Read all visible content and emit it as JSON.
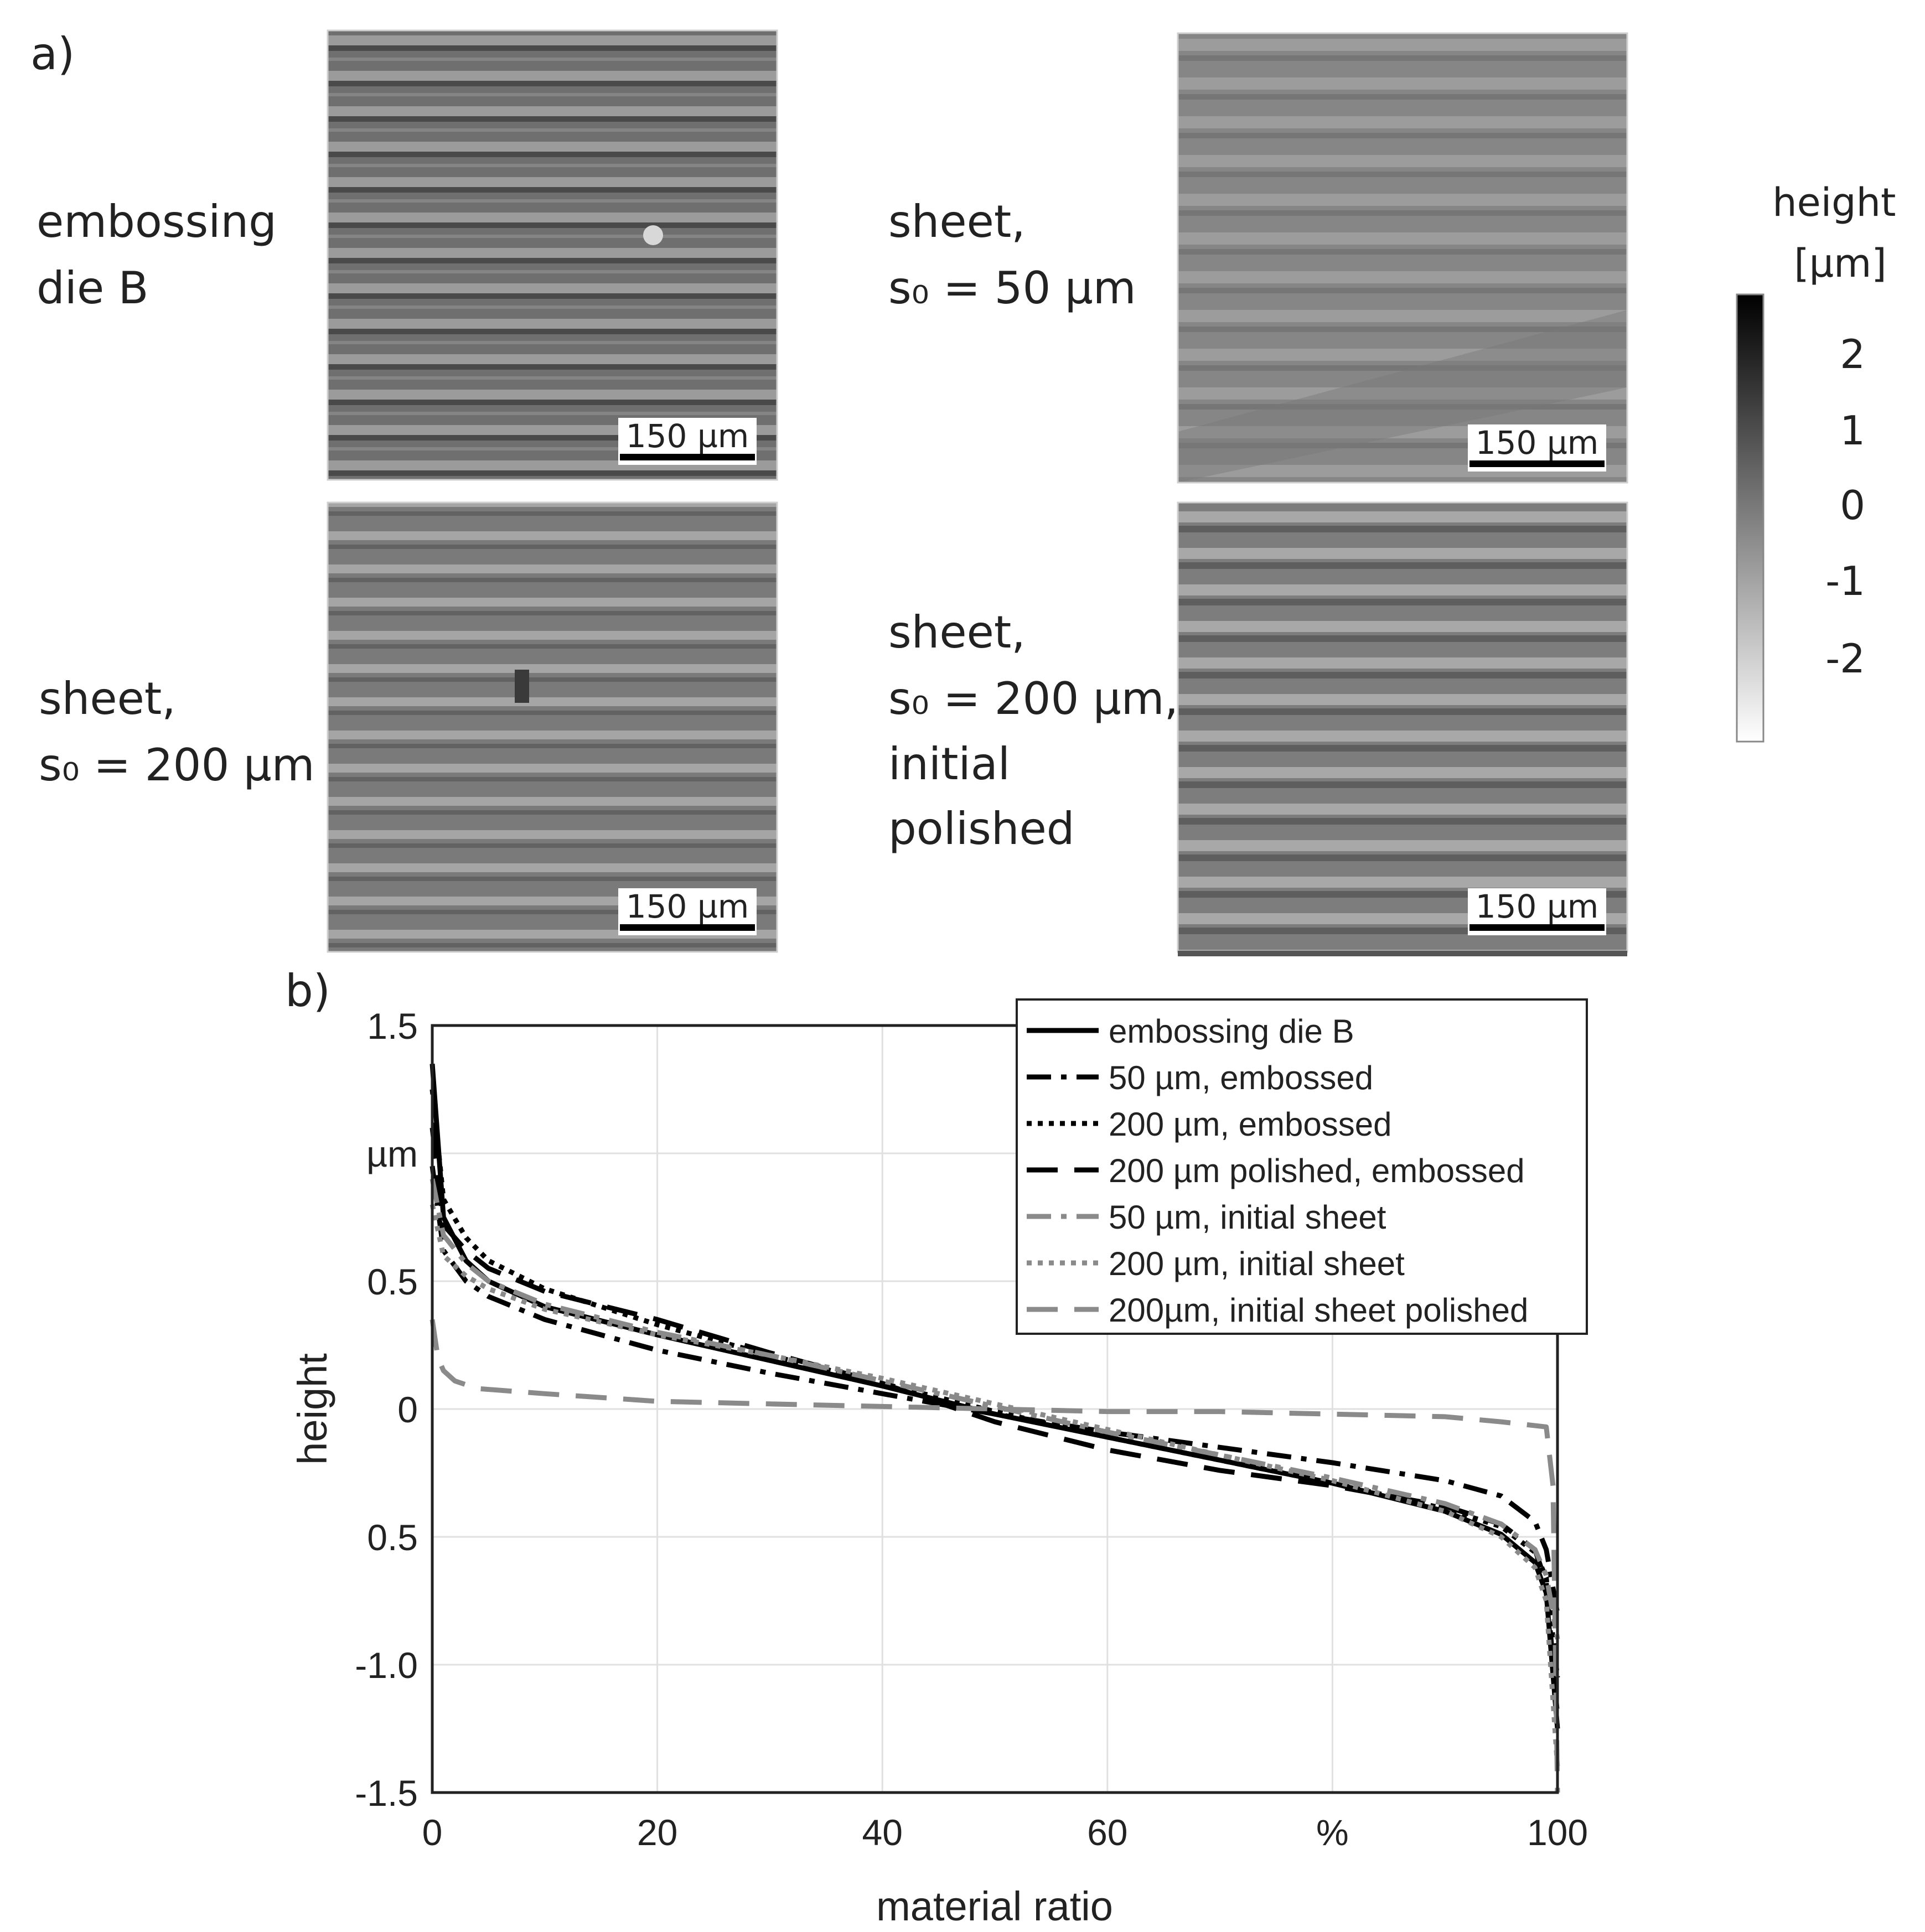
{
  "panel_a": {
    "label": "a)",
    "images": [
      {
        "id": "die",
        "caption": [
          "embossing",
          "die B"
        ],
        "scale_bar": "150 µm"
      },
      {
        "id": "s50",
        "caption": [
          "sheet,",
          "s₀ = 50 µm"
        ],
        "scale_bar": "150 µm"
      },
      {
        "id": "s200",
        "caption": [
          "sheet,",
          "s₀ = 200 µm"
        ],
        "scale_bar": "150 µm"
      },
      {
        "id": "s200p",
        "caption": [
          "sheet,",
          "s₀ = 200 µm,",
          "initial",
          "polished"
        ],
        "scale_bar": "150 µm"
      }
    ],
    "colorbar": {
      "title": [
        "height",
        "[µm]"
      ],
      "ticks": [
        "2",
        "1",
        "0",
        "-1",
        "-2"
      ]
    }
  },
  "panel_b": {
    "label": "b)"
  },
  "chart_data": {
    "type": "line",
    "xlabel": "material ratio",
    "ylabel": "height",
    "x_ticks": [
      "0",
      "20",
      "40",
      "60",
      "%",
      "100"
    ],
    "y_ticks": [
      "1.5",
      "µm",
      "0.5",
      "0",
      "0.5",
      "-1.0",
      "-1.5"
    ],
    "xlim": [
      0,
      100
    ],
    "ylim": [
      -1.5,
      1.5
    ],
    "grid": true,
    "legend_position": "top-right",
    "series": [
      {
        "name": "embossing die B",
        "color": "#000000",
        "dash": "solid",
        "x": [
          0,
          1,
          3,
          5,
          10,
          20,
          30,
          40,
          50,
          60,
          70,
          80,
          90,
          95,
          98,
          99,
          100
        ],
        "y": [
          1.35,
          0.75,
          0.58,
          0.5,
          0.4,
          0.29,
          0.19,
          0.09,
          -0.02,
          -0.11,
          -0.2,
          -0.29,
          -0.4,
          -0.49,
          -0.6,
          -0.72,
          -1.25
        ]
      },
      {
        "name": "50 µm, embossed",
        "color": "#000000",
        "dash": "dashdot",
        "x": [
          0,
          1,
          3,
          5,
          10,
          20,
          30,
          40,
          50,
          60,
          70,
          80,
          90,
          95,
          98,
          99,
          100
        ],
        "y": [
          0.95,
          0.62,
          0.5,
          0.44,
          0.35,
          0.23,
          0.14,
          0.06,
          -0.02,
          -0.09,
          -0.15,
          -0.21,
          -0.28,
          -0.34,
          -0.44,
          -0.55,
          -0.8
        ]
      },
      {
        "name": "200 µm, embossed",
        "color": "#000000",
        "dash": "dotted",
        "x": [
          0,
          1,
          3,
          5,
          10,
          20,
          30,
          40,
          50,
          60,
          70,
          80,
          90,
          95,
          98,
          99,
          100
        ],
        "y": [
          1.25,
          0.82,
          0.67,
          0.58,
          0.47,
          0.33,
          0.21,
          0.1,
          -0.01,
          -0.11,
          -0.2,
          -0.29,
          -0.39,
          -0.46,
          -0.56,
          -0.66,
          -1.05
        ]
      },
      {
        "name": "200 µm polished, embossed",
        "color": "#000000",
        "dash": "longdash",
        "x": [
          0,
          1,
          3,
          5,
          10,
          20,
          30,
          40,
          50,
          60,
          70,
          80,
          90,
          95,
          98,
          99,
          100
        ],
        "y": [
          1.1,
          0.72,
          0.62,
          0.55,
          0.46,
          0.35,
          0.22,
          0.1,
          -0.05,
          -0.16,
          -0.24,
          -0.3,
          -0.38,
          -0.45,
          -0.55,
          -0.68,
          -1.2
        ]
      },
      {
        "name": "50 µm, initial sheet",
        "color": "#8a8a8a",
        "dash": "dashdot",
        "x": [
          0,
          1,
          3,
          5,
          10,
          20,
          30,
          40,
          50,
          60,
          70,
          80,
          90,
          95,
          98,
          99,
          100
        ],
        "y": [
          0.9,
          0.68,
          0.57,
          0.5,
          0.41,
          0.3,
          0.21,
          0.11,
          0.01,
          -0.09,
          -0.18,
          -0.27,
          -0.37,
          -0.45,
          -0.55,
          -0.65,
          -0.9
        ]
      },
      {
        "name": "200 µm, initial sheet",
        "color": "#8a8a8a",
        "dash": "dotted",
        "x": [
          0,
          1,
          3,
          5,
          10,
          20,
          30,
          40,
          50,
          60,
          70,
          80,
          90,
          95,
          98,
          99,
          100
        ],
        "y": [
          0.8,
          0.6,
          0.52,
          0.47,
          0.39,
          0.29,
          0.21,
          0.12,
          0.02,
          -0.08,
          -0.18,
          -0.28,
          -0.4,
          -0.5,
          -0.62,
          -0.75,
          -1.4
        ]
      },
      {
        "name": "200µm, initial sheet polished",
        "color": "#8a8a8a",
        "dash": "longdash",
        "x": [
          0,
          0.5,
          1,
          2,
          4,
          10,
          20,
          30,
          40,
          50,
          60,
          70,
          80,
          90,
          95,
          99,
          99.6,
          100
        ],
        "y": [
          0.35,
          0.2,
          0.15,
          0.11,
          0.08,
          0.06,
          0.03,
          0.02,
          0.01,
          0.0,
          -0.01,
          -0.01,
          -0.02,
          -0.03,
          -0.05,
          -0.07,
          -0.3,
          -1.5
        ]
      }
    ]
  }
}
